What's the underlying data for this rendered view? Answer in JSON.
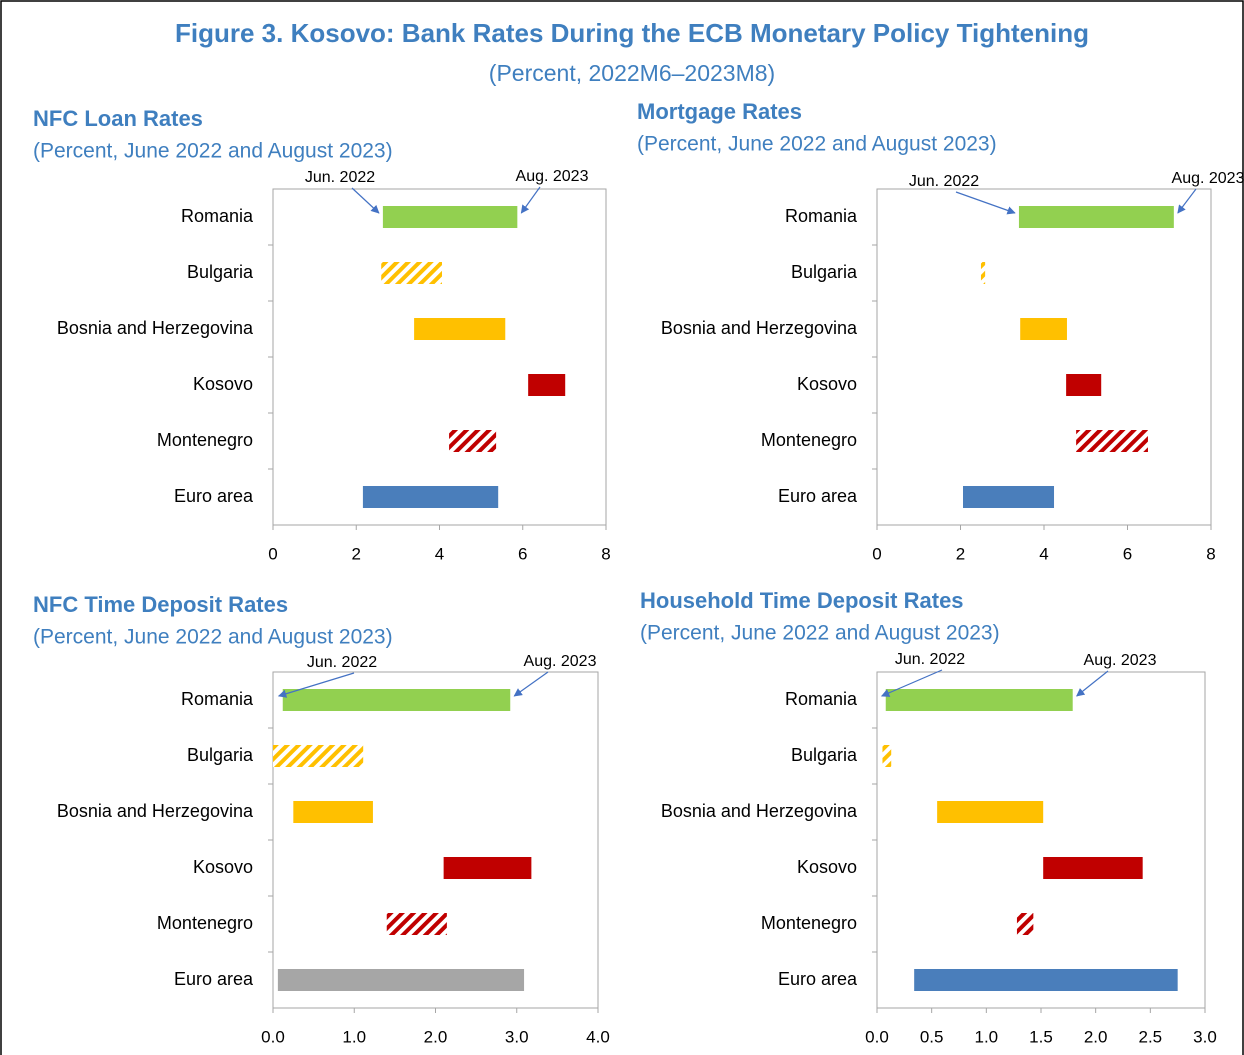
{
  "title": "Figure 3. Kosovo: Bank Rates During the ECB Monetary Policy Tightening",
  "subtitle": "(Percent, 2022M6–2023M8)",
  "chart_data": [
    {
      "type": "floating-bar",
      "title": "NFC Loan Rates",
      "subtitle": "(Percent, June 2022 and August 2023)",
      "categories": [
        "Romania",
        "Bulgaria",
        "Bosnia and Herzegovina",
        "Kosovo",
        "Montenegro",
        "Euro area"
      ],
      "colors": [
        "#92d050",
        "#ffc000",
        "#ffc000",
        "#c00000",
        "#c00000",
        "#4a7ebb"
      ],
      "patterns": [
        "solid",
        "hatch",
        "solid",
        "solid",
        "hatch",
        "solid"
      ],
      "series": [
        {
          "name": "Jun. 2022",
          "values": [
            2.64,
            2.6,
            3.39,
            6.13,
            4.23,
            2.16
          ]
        },
        {
          "name": "Aug. 2023",
          "values": [
            5.87,
            4.06,
            5.58,
            7.02,
            5.36,
            5.41
          ]
        }
      ],
      "xlim": [
        0,
        8
      ],
      "xticks": [
        0,
        2,
        4,
        6,
        8
      ]
    },
    {
      "type": "floating-bar",
      "title": "Mortgage Rates",
      "subtitle": "(Percent, June 2022 and August 2023)",
      "categories": [
        "Romania",
        "Bulgaria",
        "Bosnia and Herzegovina",
        "Kosovo",
        "Montenegro",
        "Euro area"
      ],
      "colors": [
        "#92d050",
        "#ffc000",
        "#ffc000",
        "#c00000",
        "#c00000",
        "#4a7ebb"
      ],
      "patterns": [
        "solid",
        "hatch",
        "solid",
        "solid",
        "hatch",
        "solid"
      ],
      "series": [
        {
          "name": "Jun. 2022",
          "values": [
            3.4,
            2.49,
            3.43,
            4.53,
            4.77,
            2.06
          ]
        },
        {
          "name": "Aug. 2023",
          "values": [
            7.11,
            2.59,
            4.55,
            5.37,
            6.49,
            4.24
          ]
        }
      ],
      "xlim": [
        0,
        8
      ],
      "xticks": [
        0,
        2,
        4,
        6,
        8
      ]
    },
    {
      "type": "floating-bar",
      "title": "NFC Time Deposit Rates",
      "subtitle": "(Percent, June 2022 and August 2023)",
      "categories": [
        "Romania",
        "Bulgaria",
        "Bosnia and Herzegovina",
        "Kosovo",
        "Montenegro",
        "Euro area"
      ],
      "colors": [
        "#92d050",
        "#ffc000",
        "#ffc000",
        "#c00000",
        "#c00000",
        "#a6a6a6"
      ],
      "patterns": [
        "solid",
        "hatch",
        "solid",
        "solid",
        "hatch",
        "solid"
      ],
      "series": [
        {
          "name": "Jun. 2022",
          "values": [
            0.12,
            0.0,
            0.25,
            2.1,
            1.4,
            0.06
          ]
        },
        {
          "name": "Aug. 2023",
          "values": [
            2.92,
            1.11,
            1.23,
            3.18,
            2.14,
            3.09
          ]
        }
      ],
      "xlim": [
        0,
        4
      ],
      "xticks": [
        {
          "value": 0,
          "label": "0.0"
        },
        {
          "value": 1,
          "label": "1.0"
        },
        {
          "value": 2,
          "label": "2.0"
        },
        {
          "value": 3,
          "label": "3.0"
        },
        {
          "value": 4,
          "label": "4.0"
        }
      ]
    },
    {
      "type": "floating-bar",
      "title": "Household Time Deposit Rates",
      "subtitle": "(Percent, June 2022 and August 2023)",
      "categories": [
        "Romania",
        "Bulgaria",
        "Bosnia and Herzegovina",
        "Kosovo",
        "Montenegro",
        "Euro area"
      ],
      "colors": [
        "#92d050",
        "#ffc000",
        "#ffc000",
        "#c00000",
        "#c00000",
        "#4a7ebb"
      ],
      "patterns": [
        "solid",
        "hatch",
        "solid",
        "solid",
        "hatch",
        "solid"
      ],
      "series": [
        {
          "name": "Jun. 2022",
          "values": [
            0.08,
            0.05,
            0.55,
            1.52,
            1.28,
            0.34
          ]
        },
        {
          "name": "Aug. 2023",
          "values": [
            1.79,
            0.13,
            1.52,
            2.43,
            1.43,
            2.75
          ]
        }
      ],
      "xlim": [
        0,
        3
      ],
      "xticks": [
        {
          "value": 0,
          "label": "0.0"
        },
        0.5,
        {
          "value": 1,
          "label": "1.0"
        },
        1.5,
        {
          "value": 2,
          "label": "2.0"
        },
        2.5,
        {
          "value": 3,
          "label": "3.0"
        }
      ]
    }
  ]
}
